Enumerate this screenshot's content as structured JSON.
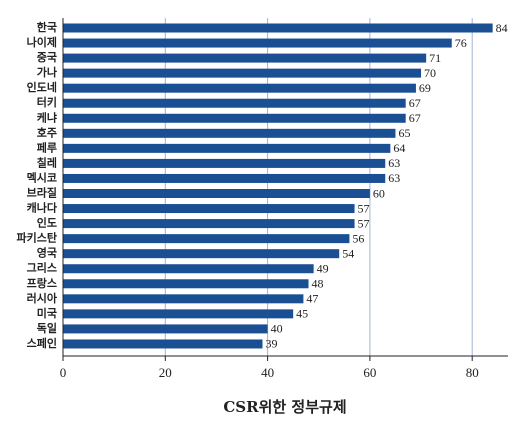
{
  "chart_data": {
    "type": "bar",
    "orientation": "horizontal",
    "x_label": "CSR위한 정부규제",
    "categories": [
      "한국",
      "나이제",
      "중국",
      "가나",
      "인도네",
      "터키",
      "케냐",
      "호주",
      "페루",
      "칠레",
      "멕시코",
      "브라질",
      "캐나다",
      "인도",
      "파키스탄",
      "영국",
      "그리스",
      "프랑스",
      "러시아",
      "미국",
      "독일",
      "스페인"
    ],
    "values": [
      84,
      76,
      71,
      70,
      69,
      67,
      67,
      65,
      64,
      63,
      63,
      60,
      57,
      57,
      56,
      54,
      49,
      48,
      47,
      45,
      40,
      39
    ],
    "color": "#1b4f93",
    "xlim": [
      0,
      87
    ],
    "xticks": [
      0,
      20,
      40,
      60,
      80
    ],
    "grid": true,
    "grid_color": "#9bb3d6"
  }
}
